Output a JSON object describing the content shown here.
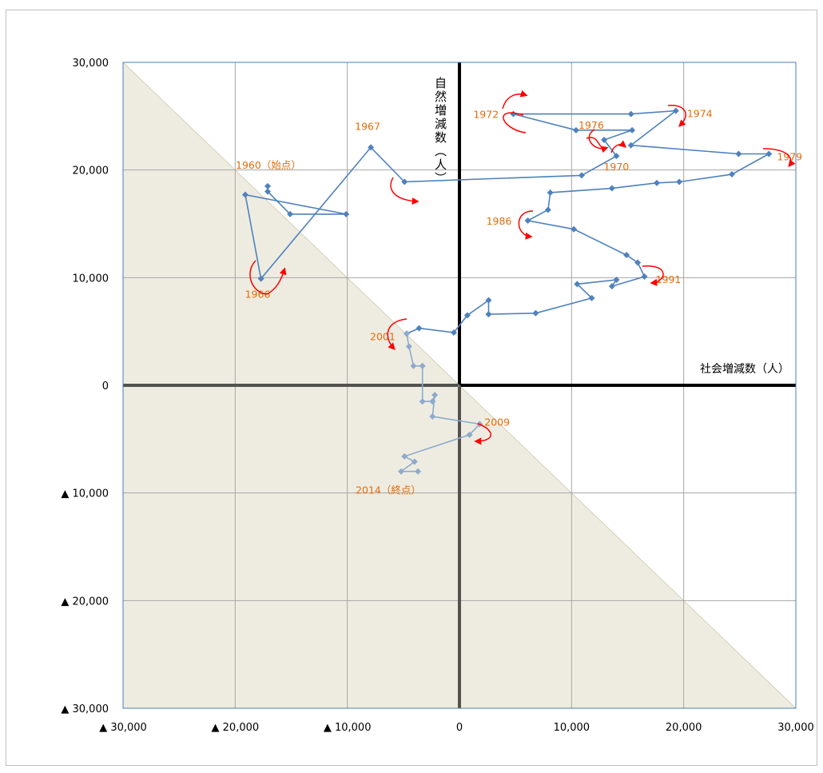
{
  "chart_data": {
    "type": "scatter",
    "title": "",
    "xlabel": "社会増減数（人）",
    "ylabel": "自然増減数（人）",
    "xlim": [
      -30000,
      30000
    ],
    "ylim": [
      -30000,
      30000
    ],
    "x_ticks": [
      {
        "value": -30000,
        "label": "▲ 30,000"
      },
      {
        "value": -20000,
        "label": "▲ 20,000"
      },
      {
        "value": -10000,
        "label": "▲ 10,000"
      },
      {
        "value": 0,
        "label": "0"
      },
      {
        "value": 10000,
        "label": "10,000"
      },
      {
        "value": 20000,
        "label": "20,000"
      },
      {
        "value": 30000,
        "label": "30,000"
      }
    ],
    "y_ticks": [
      {
        "value": 30000,
        "label": "30,000"
      },
      {
        "value": 20000,
        "label": "20,000"
      },
      {
        "value": 10000,
        "label": "10,000"
      },
      {
        "value": 0,
        "label": "0"
      },
      {
        "value": -10000,
        "label": "▲ 10,000"
      },
      {
        "value": -20000,
        "label": "▲ 20,000"
      },
      {
        "value": -30000,
        "label": "▲ 30,000"
      }
    ],
    "grid": true,
    "shaded_region": "x + y < 0",
    "series": [
      {
        "color": "#4f81bd",
        "points": [
          [
            -17100,
            18500
          ],
          [
            -17100,
            18000
          ],
          [
            -15100,
            15900
          ],
          [
            -10100,
            15900
          ],
          [
            -19100,
            17700
          ],
          [
            -17700,
            9900
          ],
          [
            -7900,
            22100
          ],
          [
            -4900,
            18900
          ],
          [
            10900,
            19500
          ],
          [
            14000,
            21300
          ],
          [
            12900,
            22800
          ],
          [
            15400,
            23700
          ],
          [
            10400,
            23700
          ],
          [
            4800,
            25200
          ],
          [
            15300,
            25200
          ],
          [
            19300,
            25500
          ],
          [
            15300,
            22300
          ],
          [
            24900,
            21500
          ],
          [
            27600,
            21500
          ],
          [
            24300,
            19600
          ],
          [
            19600,
            18900
          ],
          [
            17600,
            18800
          ],
          [
            13600,
            18300
          ],
          [
            8100,
            17900
          ],
          [
            7900,
            16300
          ],
          [
            6100,
            15300
          ],
          [
            10200,
            14500
          ],
          [
            14900,
            12100
          ],
          [
            15900,
            11400
          ],
          [
            16500,
            10100
          ],
          [
            13600,
            9200
          ],
          [
            14000,
            9800
          ],
          [
            10500,
            9400
          ],
          [
            11800,
            8100
          ],
          [
            6800,
            6700
          ],
          [
            2600,
            6600
          ],
          [
            2600,
            7900
          ],
          [
            700,
            6500
          ],
          [
            -500,
            4900
          ],
          [
            -3600,
            5300
          ],
          [
            -4700,
            4800
          ]
        ]
      },
      {
        "color": "#8eaacc",
        "points": [
          [
            -4700,
            4800
          ],
          [
            -4500,
            3600
          ],
          [
            -4100,
            1800
          ],
          [
            -3300,
            1800
          ],
          [
            -3300,
            -1500
          ],
          [
            -2400,
            -1500
          ],
          [
            -2200,
            -900
          ],
          [
            -2400,
            -2900
          ],
          [
            1800,
            -3600
          ],
          [
            900,
            -4600
          ],
          [
            -4900,
            -6600
          ],
          [
            -4000,
            -7100
          ],
          [
            -5200,
            -8000
          ],
          [
            -3700,
            -8000
          ]
        ]
      }
    ],
    "annotations": [
      {
        "text": "1960（始点）",
        "x": -17100,
        "y": 18500
      },
      {
        "text": "1966",
        "x": -17700,
        "y": 9900
      },
      {
        "text": "1967",
        "x": -7900,
        "y": 22100
      },
      {
        "text": "1970",
        "x": 14000,
        "y": 21300
      },
      {
        "text": "1972",
        "x": 4800,
        "y": 25200
      },
      {
        "text": "1974",
        "x": 19300,
        "y": 25500
      },
      {
        "text": "1976",
        "x": 12900,
        "y": 22800
      },
      {
        "text": "1979",
        "x": 27600,
        "y": 21500
      },
      {
        "text": "1986",
        "x": 6100,
        "y": 15300
      },
      {
        "text": "1991",
        "x": 16500,
        "y": 10100
      },
      {
        "text": "2001",
        "x": -4700,
        "y": 4800
      },
      {
        "text": "2009",
        "x": 1800,
        "y": -3600
      },
      {
        "text": "2014（終点）",
        "x": -3700,
        "y": -8000
      }
    ],
    "colors": {
      "series_dark": "#4f81bd",
      "series_light": "#8eaacc",
      "annotation_text": "#e36c09",
      "arrow": "#ff0000",
      "shade": "#eeece1",
      "plot_border": "#4a7ebb",
      "grid": "#a6a6a6",
      "axis_line": "#000000"
    }
  }
}
